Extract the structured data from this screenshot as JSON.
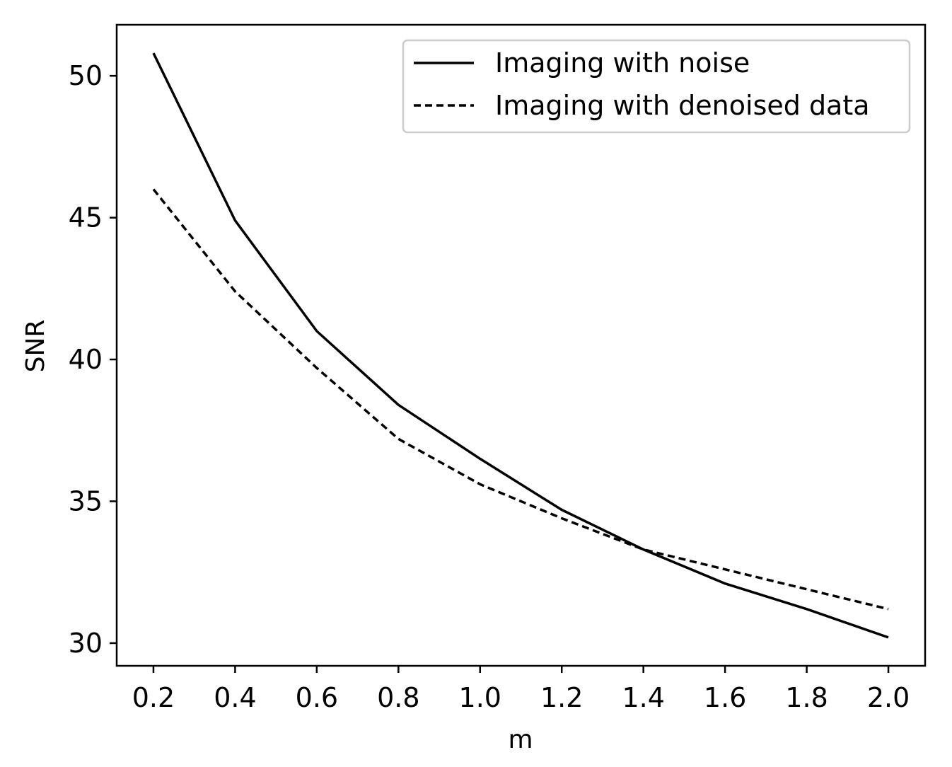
{
  "chart_data": {
    "type": "line",
    "title": "",
    "xlabel": "m",
    "ylabel": "SNR",
    "xlim": [
      0.11,
      2.09
    ],
    "ylim": [
      29.2,
      51.8
    ],
    "xticks": [
      "0.2",
      "0.4",
      "0.6",
      "0.8",
      "1.0",
      "1.2",
      "1.4",
      "1.6",
      "1.8",
      "2.0"
    ],
    "yticks": [
      "30",
      "35",
      "40",
      "45",
      "50"
    ],
    "grid": false,
    "legend_position": "top-right",
    "x": [
      0.2,
      0.4,
      0.6,
      0.8,
      1.0,
      1.2,
      1.4,
      1.6,
      1.8,
      2.0
    ],
    "series": [
      {
        "name": "Imaging with noise",
        "style": "solid",
        "color": "#000000",
        "values": [
          50.8,
          44.9,
          41.0,
          38.4,
          36.5,
          34.7,
          33.3,
          32.1,
          31.2,
          30.2
        ]
      },
      {
        "name": "Imaging with denoised data",
        "style": "dashed",
        "color": "#000000",
        "values": [
          46.0,
          42.4,
          39.7,
          37.2,
          35.6,
          34.4,
          33.3,
          32.6,
          31.9,
          31.2
        ]
      }
    ]
  }
}
